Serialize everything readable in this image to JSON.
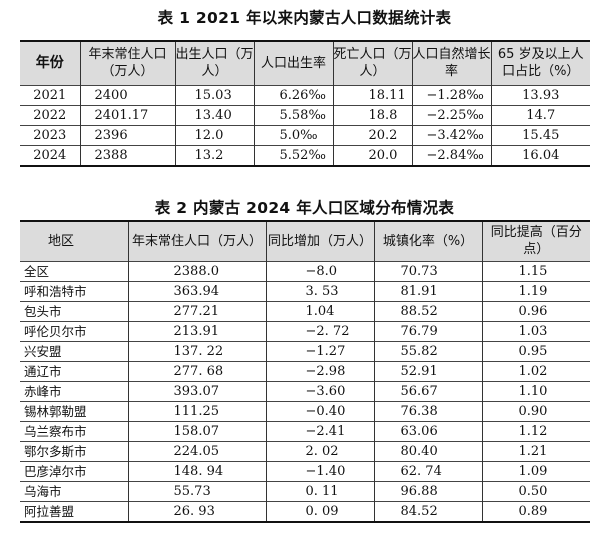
{
  "table1": {
    "caption": "表 1  2021 年以来内蒙古人口数据统计表",
    "headers": [
      "年份",
      "年末常住人口（万人）",
      "出生人口（万人）",
      "人口出生率",
      "死亡人口（万人）",
      "人口自然增长率",
      "65 岁及以上人口占比（%）"
    ],
    "rows": [
      [
        "2021",
        "2400",
        "15.03",
        "6.26‰",
        "18.11",
        "−1.28‰",
        "13.93"
      ],
      [
        "2022",
        "2401.17",
        "13.40",
        "5.58‰",
        "18.8",
        "−2.25‰",
        "14.7"
      ],
      [
        "2023",
        "2396",
        "12.0",
        "5.0‰",
        "20.2",
        "−3.42‰",
        "15.45"
      ],
      [
        "2024",
        "2388",
        "13.2",
        "5.52‰",
        "20.0",
        "−2.84‰",
        "16.04"
      ]
    ]
  },
  "table2": {
    "caption": "表 2  内蒙古 2024 年人口区域分布情况表",
    "headers": [
      "地区",
      "年末常住人口（万人）",
      "同比增加（万人）",
      "城镇化率（%）",
      "同比提高（百分点）"
    ],
    "rows": [
      [
        "全区",
        "2388.0",
        "−8.0",
        "70.73",
        "1.15"
      ],
      [
        "呼和浩特市",
        "363.94",
        "3. 53",
        "81.91",
        "1.19"
      ],
      [
        "包头市",
        "277.21",
        "1.04",
        "88.52",
        "0.96"
      ],
      [
        "呼伦贝尔市",
        "213.91",
        "−2. 72",
        "76.79",
        "1.03"
      ],
      [
        "兴安盟",
        "137. 22",
        "−1.27",
        "55.82",
        "0.95"
      ],
      [
        "通辽市",
        "277. 68",
        "−2.98",
        "52.91",
        "1.02"
      ],
      [
        "赤峰市",
        "393.07",
        "−3.60",
        "56.67",
        "1.10"
      ],
      [
        "锡林郭勒盟",
        "111.25",
        "−0.40",
        "76.38",
        "0.90"
      ],
      [
        "乌兰察布市",
        "158.07",
        "−2.41",
        "63.06",
        "1.12"
      ],
      [
        "鄂尔多斯市",
        "224.05",
        "2. 02",
        "80.40",
        "1.21"
      ],
      [
        "巴彦淖尔市",
        "148. 94",
        "−1.40",
        "62. 74",
        "1.09"
      ],
      [
        "乌海市",
        "55.73",
        "0. 11",
        "96.88",
        "0.50"
      ],
      [
        "阿拉善盟",
        "26. 93",
        "0. 09",
        "84.52",
        "0.89"
      ]
    ]
  }
}
